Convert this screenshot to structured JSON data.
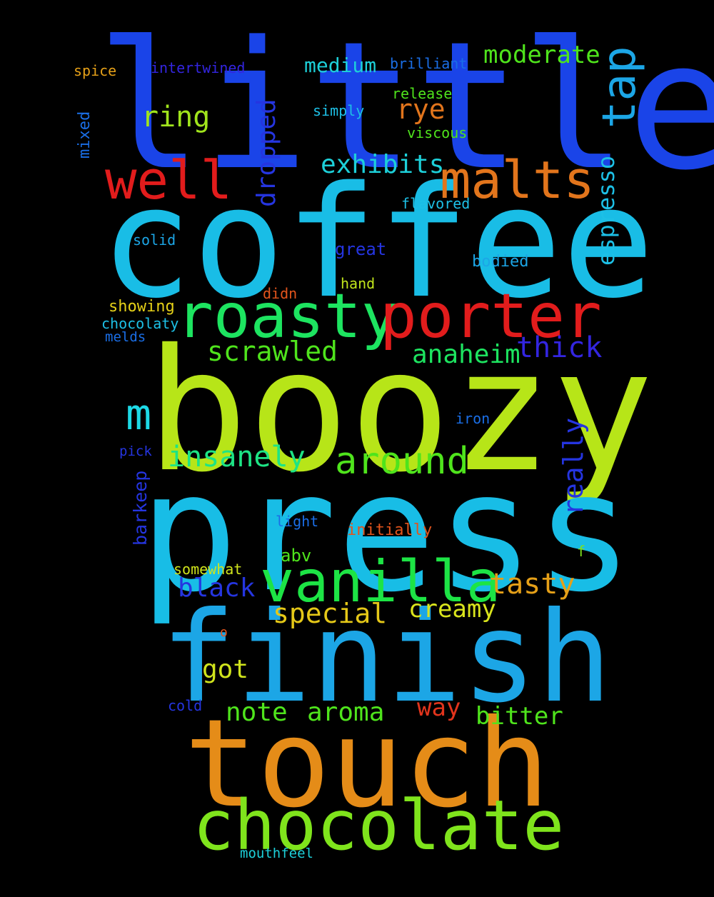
{
  "background": "#000000",
  "words": [
    {
      "id": "little",
      "text": "little",
      "color": "#1a44e8"
    },
    {
      "id": "coffee",
      "text": "coffee",
      "color": "#19bde6"
    },
    {
      "id": "boozy",
      "text": "boozy",
      "color": "#b7e518"
    },
    {
      "id": "press",
      "text": "press",
      "color": "#18bde6"
    },
    {
      "id": "finish",
      "text": "finish",
      "color": "#1ca6e6"
    },
    {
      "id": "touch",
      "text": "touch",
      "color": "#e58c18"
    },
    {
      "id": "chocolate",
      "text": "chocolate",
      "color": "#7fe41c"
    },
    {
      "id": "vanilla",
      "text": "vanilla",
      "color": "#1de445"
    },
    {
      "id": "roasty",
      "text": "roasty",
      "color": "#1de460"
    },
    {
      "id": "porter",
      "text": "porter",
      "color": "#e21c1c"
    },
    {
      "id": "well",
      "text": "well",
      "color": "#e21c1c"
    },
    {
      "id": "malts",
      "text": "malts",
      "color": "#e2751c"
    },
    {
      "id": "tap",
      "text": "tap",
      "color": "#1ca6e6"
    },
    {
      "id": "m",
      "text": "m",
      "color": "#1dd9e6"
    },
    {
      "id": "around",
      "text": "around",
      "color": "#4fe41c"
    },
    {
      "id": "insanely",
      "text": "insanely",
      "color": "#1de485"
    },
    {
      "id": "scrawled",
      "text": "scrawled",
      "color": "#4fe41c"
    },
    {
      "id": "anaheim",
      "text": "anaheim",
      "color": "#1de460"
    },
    {
      "id": "thick",
      "text": "thick",
      "color": "#3325e0"
    },
    {
      "id": "exhibits",
      "text": "exhibits",
      "color": "#1dd0d9"
    },
    {
      "id": "ring",
      "text": "ring",
      "color": "#a0e41c"
    },
    {
      "id": "moderate",
      "text": "moderate",
      "color": "#4fe41c"
    },
    {
      "id": "rye",
      "text": "rye",
      "color": "#e2751c"
    },
    {
      "id": "medium",
      "text": "medium",
      "color": "#1dd0d9"
    },
    {
      "id": "dropped",
      "text": "dropped",
      "color": "#2535e0"
    },
    {
      "id": "espresso",
      "text": "espresso",
      "color": "#1dc0e6"
    },
    {
      "id": "really",
      "text": "really",
      "color": "#2535e0"
    },
    {
      "id": "tasty",
      "text": "tasty",
      "color": "#e5a018"
    },
    {
      "id": "special",
      "text": "special",
      "color": "#e5c818"
    },
    {
      "id": "creamy",
      "text": "creamy",
      "color": "#d9e41c"
    },
    {
      "id": "black",
      "text": "black",
      "color": "#2535e0"
    },
    {
      "id": "got",
      "text": "got",
      "color": "#d0e41c"
    },
    {
      "id": "note",
      "text": "note",
      "color": "#4fe41c"
    },
    {
      "id": "aroma",
      "text": "aroma",
      "color": "#4fe41c"
    },
    {
      "id": "way",
      "text": "way",
      "color": "#e2341c"
    },
    {
      "id": "bitter",
      "text": "bitter",
      "color": "#4fe41c"
    },
    {
      "id": "spice",
      "text": "spice",
      "color": "#e5a018"
    },
    {
      "id": "intertwined",
      "text": "intertwined",
      "color": "#3325e0"
    },
    {
      "id": "brilliant",
      "text": "brilliant",
      "color": "#1a6ee6"
    },
    {
      "id": "release",
      "text": "release",
      "color": "#4fe41c"
    },
    {
      "id": "simply",
      "text": "simply",
      "color": "#1dc0e6"
    },
    {
      "id": "viscous",
      "text": "viscous",
      "color": "#4fe41c"
    },
    {
      "id": "mixed",
      "text": "mixed",
      "color": "#1a6ee6"
    },
    {
      "id": "flavored",
      "text": "flavored",
      "color": "#1dc0e6"
    },
    {
      "id": "solid",
      "text": "solid",
      "color": "#1ca6e6"
    },
    {
      "id": "great",
      "text": "great",
      "color": "#2535e0"
    },
    {
      "id": "bodied",
      "text": "bodied",
      "color": "#1ca6e6"
    },
    {
      "id": "didn",
      "text": "didn",
      "color": "#e2541c"
    },
    {
      "id": "hand",
      "text": "hand",
      "color": "#c0e41c"
    },
    {
      "id": "showing",
      "text": "showing",
      "color": "#e5d018"
    },
    {
      "id": "chocolaty",
      "text": "chocolaty",
      "color": "#1dc0e6"
    },
    {
      "id": "melds",
      "text": "melds",
      "color": "#1a6ee6"
    },
    {
      "id": "iron",
      "text": "iron",
      "color": "#1a6ee6"
    },
    {
      "id": "pick",
      "text": "pick",
      "color": "#2535e0"
    },
    {
      "id": "barkeep",
      "text": "barkeep",
      "color": "#2535e0"
    },
    {
      "id": "light",
      "text": "light",
      "color": "#1a6ee6"
    },
    {
      "id": "initially",
      "text": "initially",
      "color": "#e2541c"
    },
    {
      "id": "abv",
      "text": "abv",
      "color": "#4fe41c"
    },
    {
      "id": "f",
      "text": "f",
      "color": "#7fe41c"
    },
    {
      "id": "somewhat",
      "text": "somewhat",
      "color": "#d0e41c"
    },
    {
      "id": "o",
      "text": "o",
      "color": "#e2541c"
    },
    {
      "id": "cold",
      "text": "cold",
      "color": "#2535e0"
    },
    {
      "id": "mouthfeel",
      "text": "mouthfeel",
      "color": "#1dd0d9"
    }
  ]
}
